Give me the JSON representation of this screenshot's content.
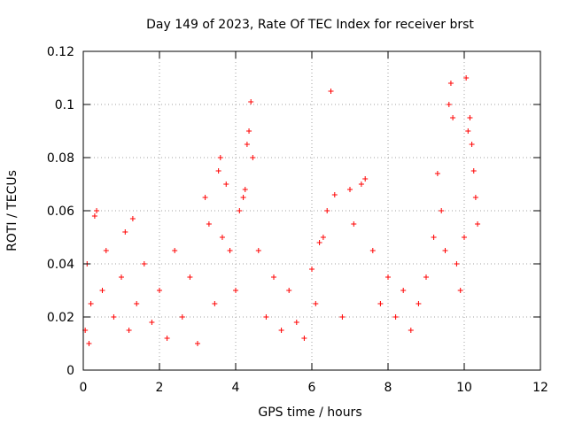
{
  "chart_data": {
    "type": "scatter",
    "title": "Day 149 of 2023, Rate Of TEC Index for receiver brst",
    "xlabel": "GPS time / hours",
    "ylabel": "ROTI / TECUs",
    "xlim": [
      0,
      12
    ],
    "ylim": [
      0,
      0.12
    ],
    "xticks": [
      "0",
      "2",
      "4",
      "6",
      "8",
      "10",
      "12"
    ],
    "yticks": [
      "0",
      "0.02",
      "0.04",
      "0.06",
      "0.08",
      "0.1",
      "0.12"
    ],
    "grid": true,
    "marker": "+",
    "color": "#ff0000",
    "series": [
      {
        "x": [
          0.05,
          0.1,
          0.15,
          0.2,
          0.3,
          0.35,
          0.5,
          0.6,
          0.8,
          1.0,
          1.1,
          1.2,
          1.3,
          1.4,
          1.6,
          1.8,
          2.0,
          2.2,
          2.4,
          2.6,
          2.8,
          3.0,
          3.2,
          3.3,
          3.45,
          3.55,
          3.6,
          3.65,
          3.75,
          3.85,
          4.0,
          4.1,
          4.2,
          4.25,
          4.3,
          4.35,
          4.4,
          4.45,
          4.6,
          4.8,
          5.0,
          5.2,
          5.4,
          5.6,
          5.8,
          6.0,
          6.1,
          6.2,
          6.3,
          6.4,
          6.5,
          6.6,
          6.8,
          7.0,
          7.1,
          7.3,
          7.4,
          7.6,
          7.8,
          8.0,
          8.2,
          8.4,
          8.6,
          8.8,
          9.0,
          9.2,
          9.3,
          9.4,
          9.5,
          9.6,
          9.65,
          9.7,
          9.8,
          9.9,
          10.0,
          10.05,
          10.1,
          10.15,
          10.2,
          10.25,
          10.3,
          10.35
        ],
        "y": [
          0.015,
          0.04,
          0.01,
          0.025,
          0.058,
          0.06,
          0.03,
          0.045,
          0.02,
          0.035,
          0.052,
          0.015,
          0.057,
          0.025,
          0.04,
          0.018,
          0.03,
          0.012,
          0.045,
          0.02,
          0.035,
          0.01,
          0.065,
          0.055,
          0.025,
          0.075,
          0.08,
          0.05,
          0.07,
          0.045,
          0.03,
          0.06,
          0.065,
          0.068,
          0.085,
          0.09,
          0.101,
          0.08,
          0.045,
          0.02,
          0.035,
          0.015,
          0.03,
          0.018,
          0.012,
          0.038,
          0.025,
          0.048,
          0.05,
          0.06,
          0.105,
          0.066,
          0.02,
          0.068,
          0.055,
          0.07,
          0.072,
          0.045,
          0.025,
          0.035,
          0.02,
          0.03,
          0.015,
          0.025,
          0.035,
          0.05,
          0.074,
          0.06,
          0.045,
          0.1,
          0.108,
          0.095,
          0.04,
          0.03,
          0.05,
          0.11,
          0.09,
          0.095,
          0.085,
          0.075,
          0.065,
          0.055
        ]
      }
    ]
  }
}
